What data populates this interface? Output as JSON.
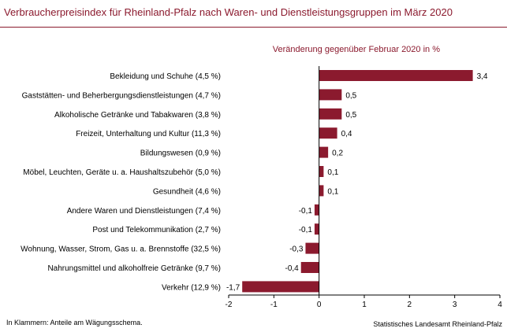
{
  "title": "Verbraucherpreisindex  für Rheinland-Pfalz  nach Waren- und Dienstleistungsgruppen  im März 2020",
  "footnote": "In Klammern:  Anteile am Wägungsschema.",
  "source": "Statistisches  Landesamt Rheinland-Pfalz",
  "colors": {
    "bar": "#8b1a2e",
    "title": "#8b1a2e",
    "axis": "#000000"
  },
  "chart_data": {
    "type": "bar",
    "orientation": "horizontal",
    "subtitle": "Veränderung  gegenüber Februar 2020 in %",
    "categories": [
      "Bekleidung und Schuhe (4,5 %)",
      "Gaststätten- und Beherbergungsdienstleistungen (4,7 %)",
      "Alkoholische Getränke und Tabakwaren (3,8 %)",
      "Freizeit, Unterhaltung und Kultur (11,3 %)",
      "Bildungswesen (0,9 %)",
      "Möbel, Leuchten, Geräte u. a. Haushaltszubehör (5,0 %)",
      "Gesundheit (4,6 %)",
      "Andere Waren und Dienstleistungen (7,4 %)",
      "Post und Telekommunikation (2,7 %)",
      "Wohnung, Wasser, Strom, Gas u. a. Brennstoffe (32,5 %)",
      "Nahrungsmittel und alkoholfreie Getränke (9,7 %)",
      "Verkehr (12,9 %)"
    ],
    "values": [
      3.4,
      0.5,
      0.5,
      0.4,
      0.2,
      0.1,
      0.1,
      -0.1,
      -0.1,
      -0.3,
      -0.4,
      -1.7
    ],
    "value_labels": [
      "3,4",
      "0,5",
      "0,5",
      "0,4",
      "0,2",
      "0,1",
      "0,1",
      "-0,1",
      "-0,1",
      "-0,3",
      "-0,4",
      "-1,7"
    ],
    "xlim": [
      -2,
      4
    ],
    "xticks": [
      -2,
      -1,
      0,
      1,
      2,
      3,
      4
    ],
    "xtick_labels": [
      "-2",
      "-1",
      "0",
      "1",
      "2",
      "3",
      "4"
    ],
    "grid": false
  }
}
